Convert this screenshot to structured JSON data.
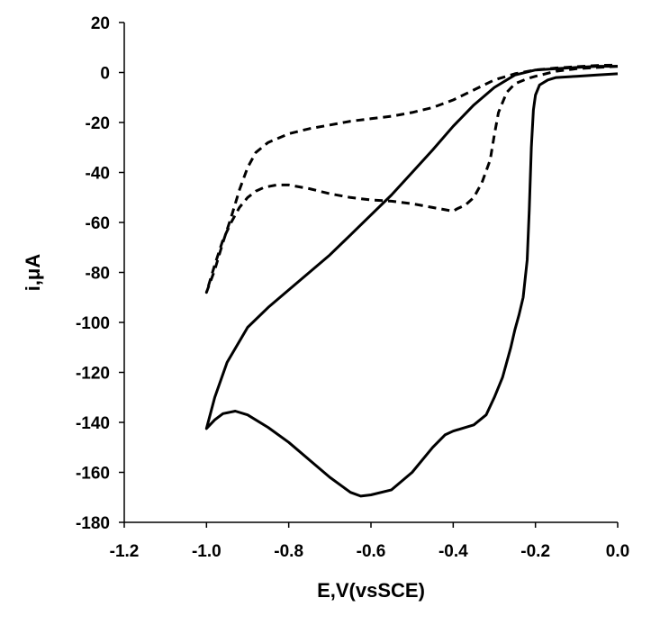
{
  "chart_data": {
    "type": "line",
    "xlabel": "E,V(vsSCE)",
    "ylabel": "i,μA",
    "xlim": [
      -1.2,
      0.0
    ],
    "ylim": [
      -180,
      20
    ],
    "xticks": [
      -1.2,
      -1.0,
      -0.8,
      -0.6,
      -0.4,
      -0.2,
      0.0
    ],
    "xtick_labels": [
      "-1.2",
      "-1.0",
      "-0.8",
      "-0.6",
      "-0.4",
      "-0.2",
      "0.0"
    ],
    "yticks": [
      20,
      0,
      -20,
      -40,
      -60,
      -80,
      -100,
      -120,
      -140,
      -160,
      -180
    ],
    "ytick_labels": [
      "20",
      "0",
      "-20",
      "-40",
      "-60",
      "-80",
      "-100",
      "-120",
      "-140",
      "-160",
      "-180"
    ],
    "grid": false,
    "legend": "none",
    "series": [
      {
        "style": "solid",
        "x": [
          0.0,
          -0.05,
          -0.1,
          -0.15,
          -0.17,
          -0.19,
          -0.2,
          -0.205,
          -0.21,
          -0.215,
          -0.22,
          -0.23,
          -0.24,
          -0.25,
          -0.26,
          -0.28,
          -0.3,
          -0.32,
          -0.35,
          -0.38,
          -0.4,
          -0.42,
          -0.45,
          -0.5,
          -0.55,
          -0.6,
          -0.625,
          -0.65,
          -0.7,
          -0.75,
          -0.8,
          -0.85,
          -0.9,
          -0.93,
          -0.96,
          -0.98,
          -1.0,
          -0.98,
          -0.95,
          -0.9,
          -0.85,
          -0.8,
          -0.75,
          -0.7,
          -0.65,
          -0.6,
          -0.55,
          -0.5,
          -0.45,
          -0.4,
          -0.35,
          -0.3,
          -0.25,
          -0.2,
          -0.15,
          -0.1,
          -0.05,
          0.0
        ],
        "y": [
          -0.5,
          -1.0,
          -1.5,
          -2.0,
          -3.0,
          -5.0,
          -9.0,
          -15.0,
          -30.0,
          -55.0,
          -75.0,
          -90.0,
          -97.0,
          -103.0,
          -110.0,
          -122.0,
          -130.0,
          -137.0,
          -141.0,
          -142.5,
          -143.5,
          -145.0,
          -150.0,
          -160.0,
          -167.0,
          -169.0,
          -169.5,
          -168.0,
          -162.0,
          -155.0,
          -148.0,
          -142.0,
          -137.0,
          -135.5,
          -136.5,
          -139.0,
          -142.5,
          -130.0,
          -116.0,
          -102.0,
          -94.0,
          -87.0,
          -80.0,
          -73.0,
          -65.0,
          -57.0,
          -49.0,
          -40.0,
          -31.0,
          -21.5,
          -13.0,
          -6.0,
          -1.0,
          1.0,
          1.5,
          2.0,
          2.5,
          2.5
        ]
      },
      {
        "style": "dashed",
        "x": [
          0.0,
          -0.05,
          -0.1,
          -0.15,
          -0.2,
          -0.22,
          -0.25,
          -0.27,
          -0.29,
          -0.3,
          -0.31,
          -0.33,
          -0.35,
          -0.37,
          -0.39,
          -0.4,
          -0.45,
          -0.5,
          -0.55,
          -0.6,
          -0.65,
          -0.7,
          -0.75,
          -0.8,
          -0.83,
          -0.86,
          -0.88,
          -0.9,
          -0.92,
          -0.94,
          -0.96,
          -0.98,
          -1.0,
          -0.98,
          -0.96,
          -0.94,
          -0.92,
          -0.9,
          -0.88,
          -0.85,
          -0.8,
          -0.75,
          -0.7,
          -0.65,
          -0.6,
          -0.55,
          -0.5,
          -0.45,
          -0.4,
          -0.35,
          -0.3,
          -0.25,
          -0.2,
          -0.15,
          -0.1,
          -0.05,
          0.0
        ],
        "y": [
          2.5,
          2.0,
          1.5,
          0.5,
          -1.5,
          -2.5,
          -4.5,
          -8.0,
          -16.0,
          -25.0,
          -35.0,
          -44.0,
          -50.0,
          -53.0,
          -54.5,
          -55.5,
          -54.0,
          -52.5,
          -51.5,
          -51.0,
          -50.0,
          -48.5,
          -46.5,
          -45.0,
          -45.0,
          -46.0,
          -47.5,
          -50.0,
          -54.0,
          -60.0,
          -67.0,
          -77.0,
          -88.0,
          -79.0,
          -68.0,
          -58.0,
          -47.0,
          -38.0,
          -32.0,
          -28.0,
          -24.5,
          -22.5,
          -21.0,
          -19.5,
          -18.5,
          -17.5,
          -16.0,
          -14.0,
          -11.0,
          -7.0,
          -3.0,
          -0.5,
          1.0,
          1.8,
          2.3,
          2.8,
          3.0
        ]
      }
    ]
  }
}
